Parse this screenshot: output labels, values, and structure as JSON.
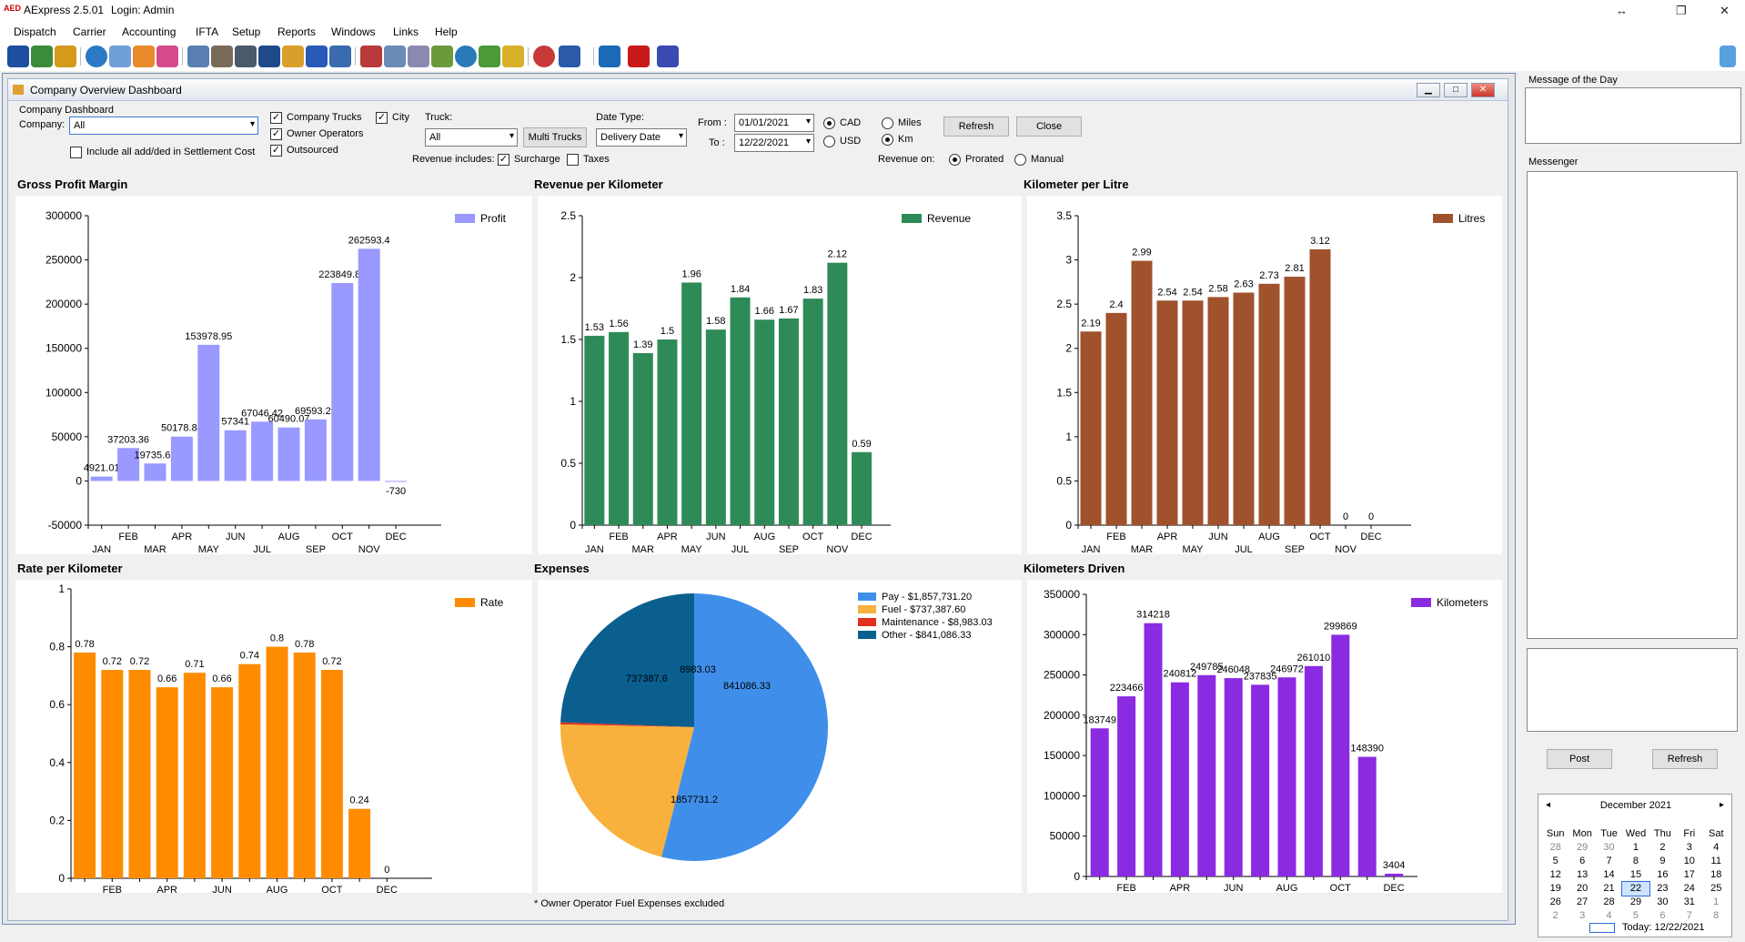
{
  "app": {
    "logo": "AED",
    "title": "AExpress 2.5.01",
    "login": "Login: Admin"
  },
  "menu": [
    "Dispatch",
    "Carrier",
    "Accounting",
    "IFTA",
    "Setup",
    "Reports",
    "Windows",
    "Links",
    "Help"
  ],
  "window": {
    "title": "Company Overview Dashboard"
  },
  "filters": {
    "group_label": "Company Dashboard",
    "company_label": "Company:",
    "company_value": "All",
    "include_label": "Include all add/ded in Settlement Cost",
    "company_trucks": "Company Trucks",
    "owner_operators": "Owner Operators",
    "outsourced": "Outsourced",
    "city": "City",
    "truck_label": "Truck:",
    "truck_value": "All",
    "multi_trucks": "Multi Trucks",
    "date_type_label": "Date Type:",
    "date_type_value": "Delivery Date",
    "from_label": "From :",
    "from_value": "01/01/2021",
    "to_label": "To :",
    "to_value": "12/22/2021",
    "cad": "CAD",
    "usd": "USD",
    "miles": "Miles",
    "km": "Km",
    "refresh": "Refresh",
    "close": "Close",
    "revenue_includes": "Revenue includes:",
    "surcharge": "Surcharge",
    "taxes": "Taxes",
    "revenue_on": "Revenue on:",
    "prorated": "Prorated",
    "manual": "Manual"
  },
  "months_even": [
    "FEB",
    "APR",
    "JUN",
    "AUG",
    "OCT",
    "DEC"
  ],
  "months_odd": [
    "JAN",
    "MAR",
    "MAY",
    "JUL",
    "SEP",
    "NOV"
  ],
  "colors": {
    "profit": "#9999ff",
    "revenue": "#2e8b57",
    "litres": "#a0522d",
    "rate": "#ff8c00",
    "km": "#8a2be2",
    "pay": "#3f8fea",
    "fuel": "#f8b13c",
    "maint": "#e0301e",
    "other": "#0a5f8f"
  },
  "chart_data": [
    {
      "type": "bar",
      "title": "Gross Profit Margin",
      "series": [
        {
          "name": "Profit",
          "values": [
            4921.01,
            37203.36,
            19735.62,
            50178.88,
            153978.95,
            57341,
            67046.42,
            60490.07,
            69593.29,
            223849.84,
            262593.4,
            -730
          ]
        }
      ],
      "labels": [
        "4921.01",
        "37203.36",
        "19735.62",
        "50178.88",
        "153978.95",
        "57341",
        "67046.42",
        "60490.07",
        "69593.29",
        "223849.84",
        "262593.4",
        "-730"
      ],
      "ylim": [
        -50000,
        300000
      ],
      "ticks": [
        "-50000",
        "0",
        "50000",
        "100000",
        "150000",
        "200000",
        "250000",
        "300000"
      ]
    },
    {
      "type": "bar",
      "title": "Revenue per Kilometer",
      "series": [
        {
          "name": "Revenue",
          "values": [
            1.53,
            1.56,
            1.39,
            1.5,
            1.96,
            1.58,
            1.84,
            1.66,
            1.67,
            1.83,
            2.12,
            0.59
          ]
        }
      ],
      "labels": [
        "1.53",
        "1.56",
        "1.39",
        "1.5",
        "1.96",
        "1.58",
        "1.84",
        "1.66",
        "1.67",
        "1.83",
        "2.12",
        "0.59"
      ],
      "ylim": [
        0,
        2.5
      ],
      "ticks": [
        "0",
        "0.5",
        "1",
        "1.5",
        "2",
        "2.5"
      ]
    },
    {
      "type": "bar",
      "title": "Kilometer per Litre",
      "series": [
        {
          "name": "Litres",
          "values": [
            2.19,
            2.4,
            2.99,
            2.54,
            2.54,
            2.58,
            2.63,
            2.73,
            2.81,
            3.12,
            0,
            0
          ]
        }
      ],
      "labels": [
        "2.19",
        "2.4",
        "2.99",
        "2.54",
        "2.54",
        "2.58",
        "2.63",
        "2.73",
        "2.81",
        "3.12",
        "0",
        "0"
      ],
      "ylim": [
        0,
        3.5
      ],
      "ticks": [
        "0",
        "0.5",
        "1",
        "1.5",
        "2",
        "2.5",
        "3",
        "3.5"
      ]
    },
    {
      "type": "bar",
      "title": "Rate per Kilometer",
      "series": [
        {
          "name": "Rate",
          "values": [
            0.78,
            0.72,
            0.72,
            0.66,
            0.71,
            0.66,
            0.74,
            0.8,
            0.78,
            0.72,
            0.24,
            0
          ]
        }
      ],
      "labels": [
        "0.78",
        "0.72",
        "0.72",
        "0.66",
        "0.71",
        "0.66",
        "0.74",
        "0.8",
        "0.78",
        "0.72",
        "0.24",
        "0"
      ],
      "ylim": [
        0,
        1
      ],
      "ticks": [
        "0",
        "0.2",
        "0.4",
        "0.6",
        "0.8",
        "1"
      ]
    },
    {
      "type": "pie",
      "title": "Expenses",
      "slices": [
        {
          "legend": "Pay - $1,857,731.20",
          "label": "1857731.2",
          "value": 1857731.2
        },
        {
          "legend": "Fuel - $737,387.60",
          "label": "737387.6",
          "value": 737387.6
        },
        {
          "legend": "Maintenance - $8,983.03",
          "label": "8983.03",
          "value": 8983.03
        },
        {
          "legend": "Other - $841,086.33",
          "label": "841086.33",
          "value": 841086.33
        }
      ],
      "note": "* Owner Operator Fuel Expenses excluded"
    },
    {
      "type": "bar",
      "title": "Kilometers Driven",
      "series": [
        {
          "name": "Kilometers",
          "values": [
            183749,
            223466,
            314218,
            240812,
            249785,
            246048,
            237835,
            246972,
            261010,
            299869,
            148390,
            3404
          ]
        }
      ],
      "labels": [
        "183749",
        "223466",
        "314218",
        "240812",
        "249785",
        "246048",
        "237835",
        "246972",
        "261010",
        "299869",
        "148390",
        "3404"
      ],
      "ylim": [
        0,
        350000
      ],
      "ticks": [
        "0",
        "50000",
        "100000",
        "150000",
        "200000",
        "250000",
        "300000",
        "350000"
      ]
    }
  ],
  "right": {
    "motd": "Message of the Day",
    "messenger": "Messenger",
    "post": "Post",
    "refresh": "Refresh"
  },
  "calendar": {
    "month": "December 2021",
    "days": [
      "Sun",
      "Mon",
      "Tue",
      "Wed",
      "Thu",
      "Fri",
      "Sat"
    ],
    "weeks": [
      [
        "28",
        "29",
        "30",
        "1",
        "2",
        "3",
        "4"
      ],
      [
        "5",
        "6",
        "7",
        "8",
        "9",
        "10",
        "11"
      ],
      [
        "12",
        "13",
        "14",
        "15",
        "16",
        "17",
        "18"
      ],
      [
        "19",
        "20",
        "21",
        "22",
        "23",
        "24",
        "25"
      ],
      [
        "26",
        "27",
        "28",
        "29",
        "30",
        "31",
        "1"
      ],
      [
        "2",
        "3",
        "4",
        "5",
        "6",
        "7",
        "8"
      ]
    ],
    "today": "Today: 12/22/2021"
  }
}
